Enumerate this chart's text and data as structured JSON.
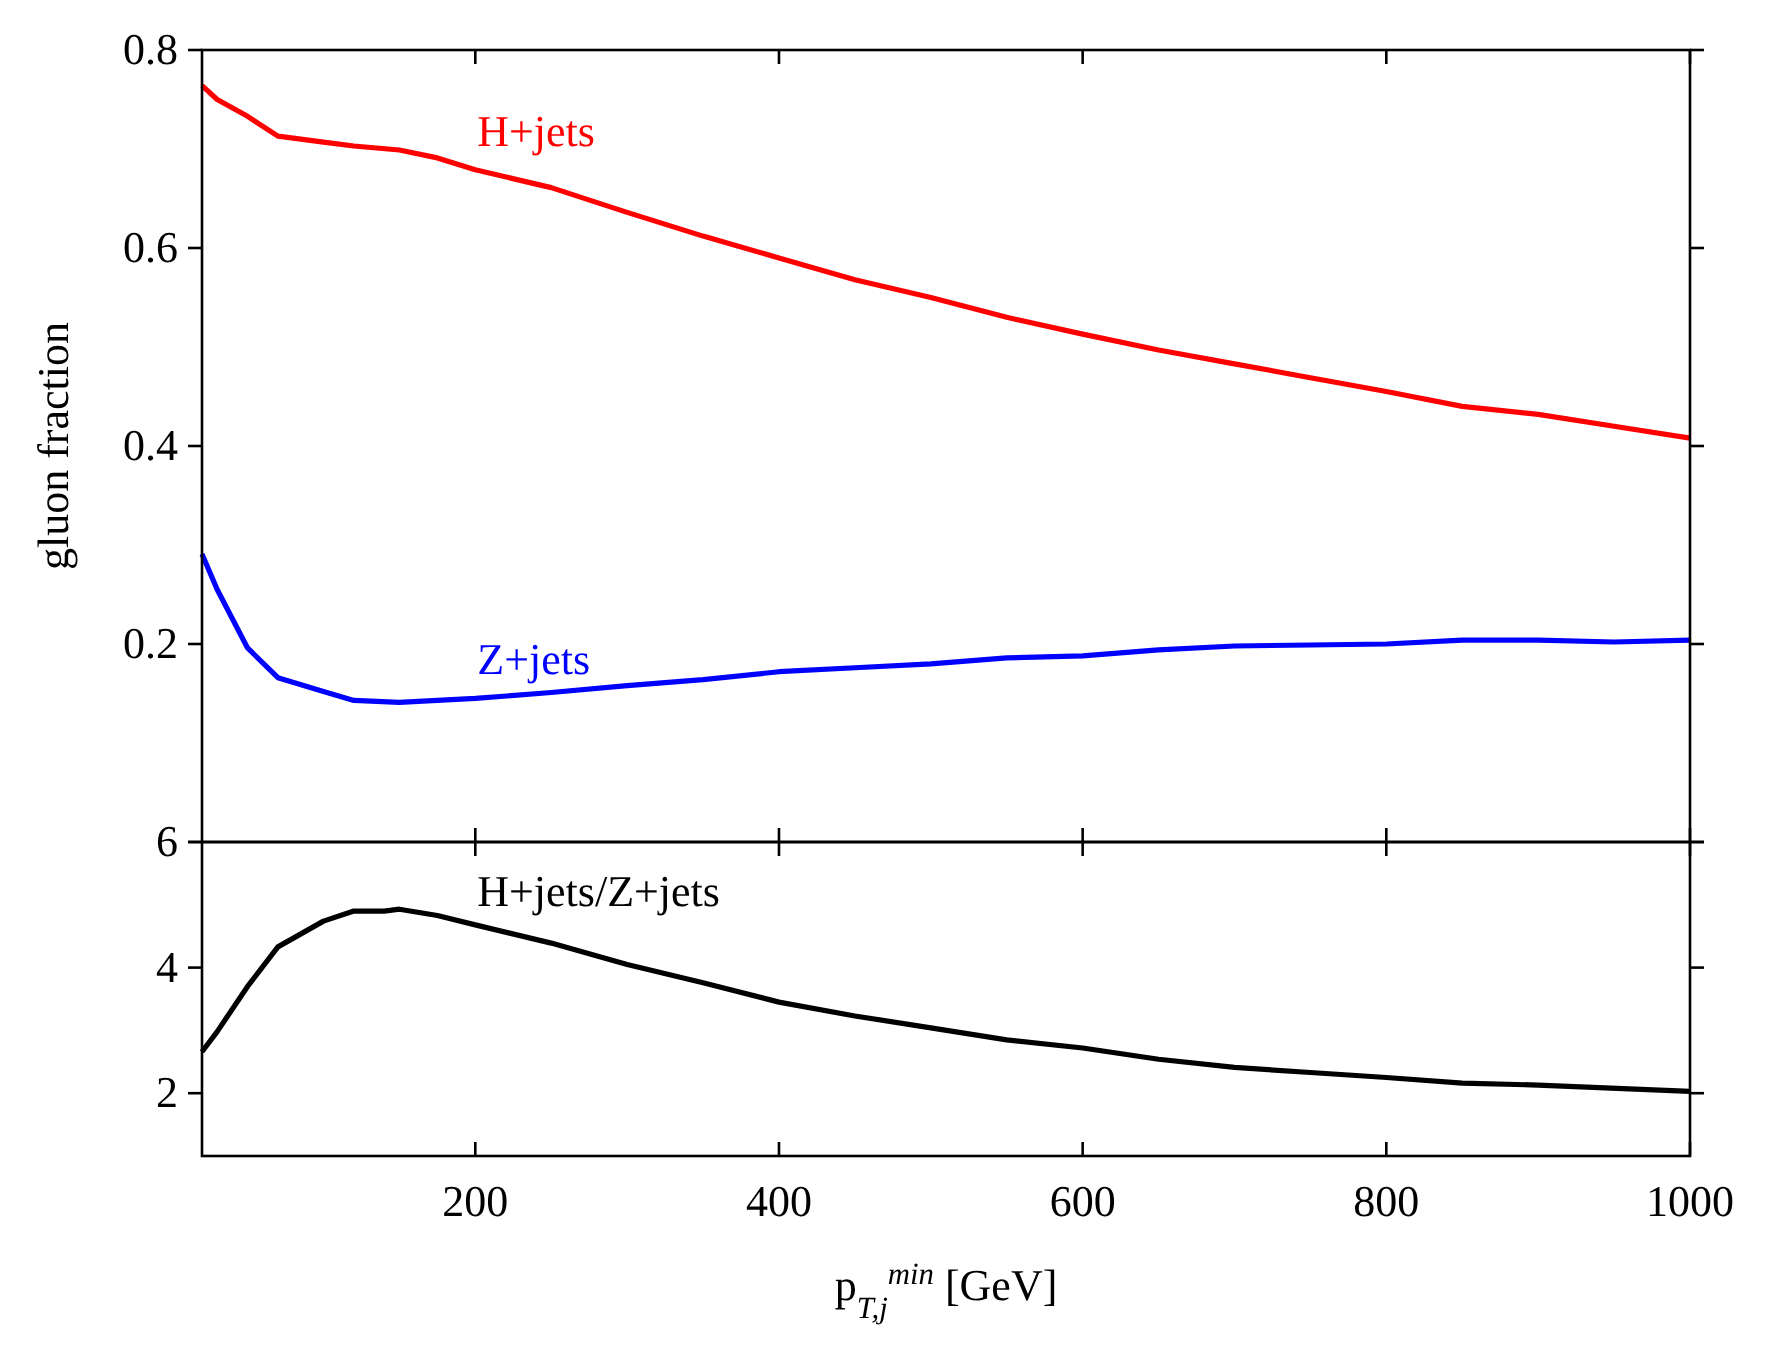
{
  "chart_data": [
    {
      "type": "line",
      "ylabel": "gluon fraction",
      "xlim": [
        20,
        1000
      ],
      "xticks": [
        200,
        400,
        600,
        800,
        1000
      ],
      "ylim": [
        0,
        0.8
      ],
      "yticks": [
        {
          "value": 0,
          "label": null
        },
        0.2,
        0.4,
        0.6,
        0.8
      ],
      "tick_labels": "y",
      "grid": false,
      "x": [
        20,
        30,
        50,
        70,
        100,
        120,
        150,
        175,
        200,
        250,
        300,
        350,
        400,
        450,
        500,
        550,
        600,
        650,
        700,
        750,
        800,
        850,
        900,
        950,
        1000
      ],
      "series": [
        {
          "name": "H+jets",
          "color": "#ff0000",
          "values": [
            0.764,
            0.75,
            0.733,
            0.713,
            0.707,
            0.703,
            0.699,
            0.691,
            0.679,
            0.661,
            0.636,
            0.612,
            0.59,
            0.568,
            0.55,
            0.53,
            0.513,
            0.497,
            0.483,
            0.469,
            0.455,
            0.44,
            0.432,
            0.42,
            0.408
          ]
        },
        {
          "name": "Z+jets",
          "color": "#0000ff",
          "values": [
            0.291,
            0.255,
            0.196,
            0.166,
            0.152,
            0.143,
            0.141,
            0.143,
            0.145,
            0.151,
            0.158,
            0.164,
            0.172,
            0.176,
            0.18,
            0.186,
            0.188,
            0.194,
            0.198,
            0.199,
            0.2,
            0.204,
            0.204,
            0.202,
            0.204
          ]
        }
      ]
    },
    {
      "type": "line",
      "xlabel": "p$_{T,j}$$^{min}$ [GeV]",
      "xlim": [
        20,
        1000
      ],
      "xticks": [
        200,
        400,
        600,
        800,
        1000
      ],
      "ylim": [
        1,
        6
      ],
      "yticks": [
        2,
        4,
        6
      ],
      "grid": false,
      "x": [
        20,
        30,
        50,
        70,
        100,
        120,
        140,
        150,
        175,
        200,
        250,
        300,
        350,
        400,
        450,
        500,
        550,
        600,
        650,
        700,
        750,
        800,
        850,
        900,
        1000
      ],
      "series": [
        {
          "name": "H+jets/Z+jets",
          "color": "#000000",
          "values": [
            2.66,
            2.98,
            3.7,
            4.33,
            4.74,
            4.9,
            4.9,
            4.93,
            4.83,
            4.68,
            4.39,
            4.05,
            3.76,
            3.45,
            3.23,
            3.04,
            2.85,
            2.72,
            2.54,
            2.41,
            2.33,
            2.25,
            2.16,
            2.13,
            2.03
          ]
        }
      ]
    }
  ]
}
